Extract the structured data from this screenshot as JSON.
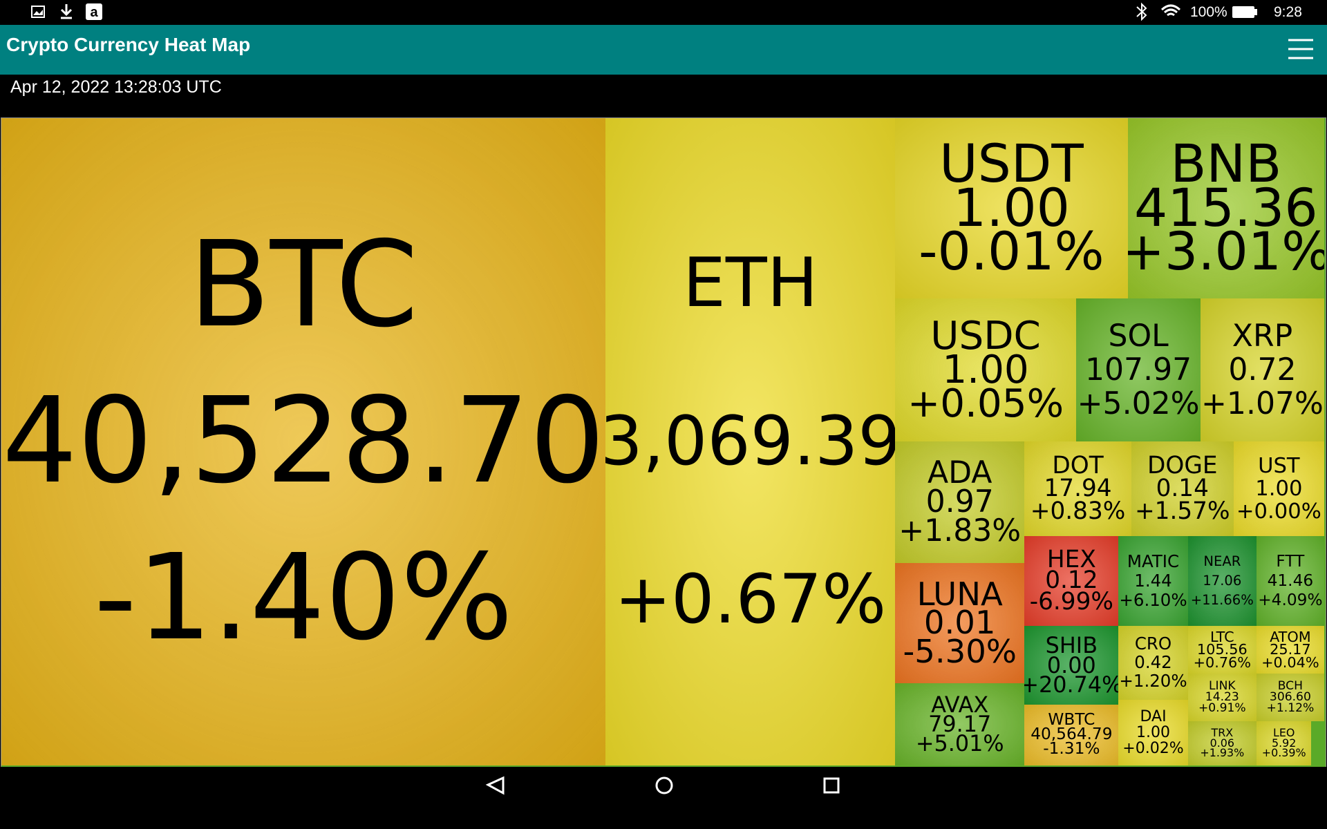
{
  "status_bar": {
    "battery": "100%",
    "time": "9:28"
  },
  "app_bar": {
    "title": "Crypto Currency Heat Map"
  },
  "timestamp": "Apr 12, 2022 13:28:03 UTC",
  "tiles": [
    {
      "symbol": "BTC",
      "price": "40,528.70",
      "change": "-1.40%",
      "color": "#e8b418"
    },
    {
      "symbol": "ETH",
      "price": "3,069.39",
      "change": "+0.67%",
      "color": "#eedc28"
    },
    {
      "symbol": "USDT",
      "price": "1.00",
      "change": "-0.01%",
      "color": "#e8d826"
    },
    {
      "symbol": "BNB",
      "price": "415.36",
      "change": "+3.01%",
      "color": "#98c828"
    },
    {
      "symbol": "USDC",
      "price": "1.00",
      "change": "+0.05%",
      "color": "#e0da28"
    },
    {
      "symbol": "SOL",
      "price": "107.97",
      "change": "+5.02%",
      "color": "#66b428"
    },
    {
      "symbol": "XRP",
      "price": "0.72",
      "change": "+1.07%",
      "color": "#d6d428"
    },
    {
      "symbol": "ADA",
      "price": "0.97",
      "change": "+1.83%",
      "color": "#c4cc28"
    },
    {
      "symbol": "DOT",
      "price": "17.94",
      "change": "+0.83%",
      "color": "#e2d828"
    },
    {
      "symbol": "DOGE",
      "price": "0.14",
      "change": "+1.57%",
      "color": "#d0d028"
    },
    {
      "symbol": "UST",
      "price": "1.00",
      "change": "+0.00%",
      "color": "#ecdc28"
    },
    {
      "symbol": "LUNA",
      "price": "0.01",
      "change": "-5.30%",
      "color": "#ee7420"
    },
    {
      "symbol": "AVAX",
      "price": "79.17",
      "change": "+5.01%",
      "color": "#68b428"
    },
    {
      "symbol": "HEX",
      "price": "0.12",
      "change": "-6.99%",
      "color": "#e63c28"
    },
    {
      "symbol": "MATIC",
      "price": "1.44",
      "change": "+6.10%",
      "color": "#38a430"
    },
    {
      "symbol": "NEAR",
      "price": "17.06",
      "change": "+11.66%",
      "color": "#1c922e"
    },
    {
      "symbol": "FTT",
      "price": "41.46",
      "change": "+4.09%",
      "color": "#60b228"
    },
    {
      "symbol": "SHIB",
      "price": "0.00",
      "change": "+20.74%",
      "color": "#1c962e"
    },
    {
      "symbol": "WBTC",
      "price": "40,564.79",
      "change": "-1.31%",
      "color": "#ecbc26"
    },
    {
      "symbol": "CRO",
      "price": "0.42",
      "change": "+1.20%",
      "color": "#d6d428"
    },
    {
      "symbol": "DAI",
      "price": "1.00",
      "change": "+0.02%",
      "color": "#eadc28"
    },
    {
      "symbol": "LTC",
      "price": "105.56",
      "change": "+0.76%",
      "color": "#dcd828"
    },
    {
      "symbol": "ATOM",
      "price": "25.17",
      "change": "+0.04%",
      "color": "#eadc28"
    },
    {
      "symbol": "LINK",
      "price": "14.23",
      "change": "+0.91%",
      "color": "#d8d628"
    },
    {
      "symbol": "BCH",
      "price": "306.60",
      "change": "+1.12%",
      "color": "#c8ce28"
    },
    {
      "symbol": "TRX",
      "price": "0.06",
      "change": "+1.93%",
      "color": "#c2cc28"
    },
    {
      "symbol": "LEO",
      "price": "5.92",
      "change": "+0.39%",
      "color": "#dcd828"
    }
  ]
}
